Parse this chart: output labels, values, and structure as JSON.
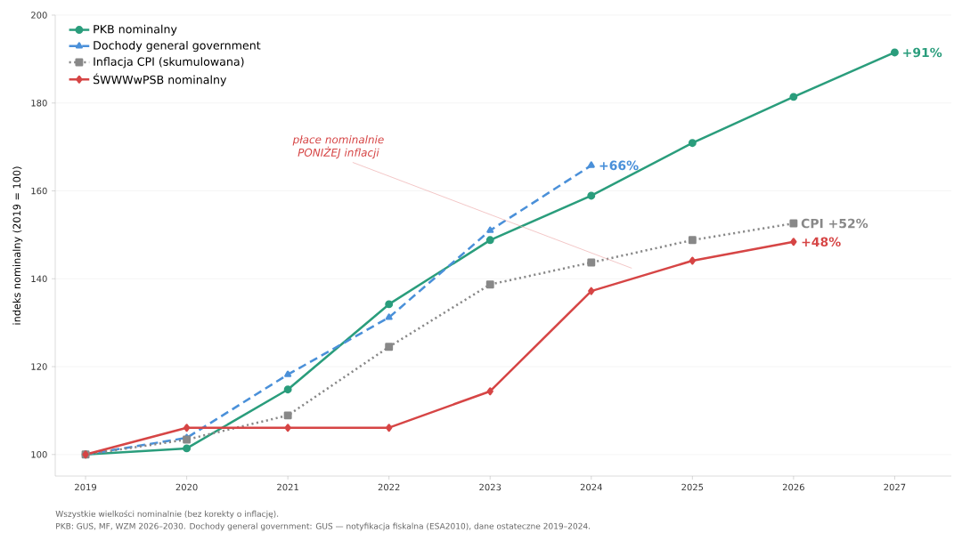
{
  "chart_data": {
    "type": "line",
    "ylabel": "indeks nominalny (2019 = 100)",
    "x": [
      2019,
      2020,
      2021,
      2022,
      2023,
      2024,
      2025,
      2026,
      2027
    ],
    "series": [
      {
        "name": "PKB nominalny",
        "color": "#2a9d7c",
        "marker": "circle",
        "line_style": "solid",
        "values": [
          100,
          101.4,
          114.8,
          134.2,
          148.8,
          158.9,
          170.9,
          181.4,
          191.5
        ]
      },
      {
        "name": "Dochody general government",
        "color": "#4a90d9",
        "marker": "triangle",
        "line_style": "dashed",
        "values": [
          100,
          103.8,
          118.2,
          131.2,
          151.0,
          165.8,
          null,
          null,
          null
        ]
      },
      {
        "name": "Inflacja CPI (skumulowana)",
        "color": "#888888",
        "marker": "square",
        "line_style": "dotted",
        "values": [
          100,
          103.4,
          108.9,
          124.5,
          138.7,
          143.7,
          148.8,
          152.6,
          null
        ]
      },
      {
        "name": "ŚWWWwPSB nominalny",
        "color": "#d64545",
        "marker": "diamond",
        "line_style": "solid",
        "values": [
          100,
          106.1,
          106.1,
          106.1,
          114.4,
          137.2,
          144.1,
          148.4,
          null
        ]
      }
    ],
    "xlim": [
      2018.7,
      2027.56
    ],
    "ylim": [
      95.1,
      200
    ],
    "xticks": [
      2019,
      2020,
      2021,
      2022,
      2023,
      2024,
      2025,
      2026,
      2027
    ],
    "yticks": [
      100,
      120,
      140,
      160,
      180,
      200
    ],
    "grid": "y",
    "legend": "top left",
    "annotations": [
      {
        "text": "+91%",
        "x": 2027,
        "y": 191.5
      },
      {
        "text": "+66%",
        "x": 2024,
        "y": 165.8
      },
      {
        "text": "CPI +52%",
        "x": 2026,
        "y": 152.6
      },
      {
        "text": "+48%",
        "x": 2026,
        "y": 148.4
      },
      "płace nominalnie PONIŻEJ inflacji",
      "Wszystkie wielkości nominalnie (bez korekty o inflację).",
      "PKB: GUS, MF, WZM 2026–2030.  Dochody general government: GUS — notyfikacja fiskalna (ESA2010), dane ostateczne 2019–2024."
    ]
  }
}
